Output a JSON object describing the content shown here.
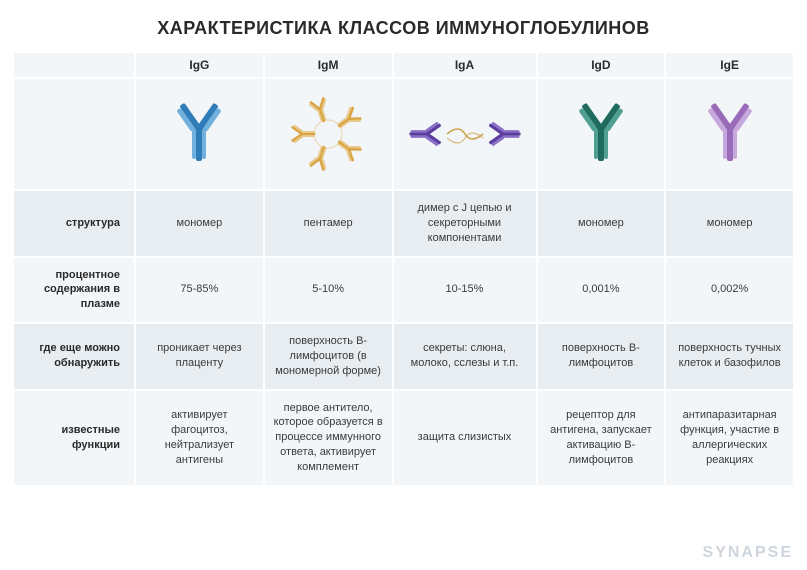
{
  "title": "ХАРАКТЕРИСТИКА КЛАССОВ ИММУНОГЛОБУЛИНОВ",
  "title_fontsize": 18,
  "title_color": "#2a2a2a",
  "watermark": "SYNAPSE",
  "colors": {
    "bg": "#ffffff",
    "row_a": "#e8edf2",
    "row_b": "#f3f6f9",
    "text": "#3a3a3a",
    "header_text": "#2a2a2a",
    "grid_gap": "#ffffff",
    "IgG": "#2e7cb8",
    "IgG_light": "#6fb0dd",
    "IgM": "#d9a441",
    "IgM_light": "#e8c88a",
    "IgA": "#5b3d9e",
    "IgA_light": "#8a6fc7",
    "IgD": "#1f6b5e",
    "IgD_light": "#4fa093",
    "IgE": "#9a6bb8",
    "IgE_light": "#c7a8dd"
  },
  "columns": [
    {
      "id": "IgG",
      "label": "IgG"
    },
    {
      "id": "IgM",
      "label": "IgM"
    },
    {
      "id": "IgA",
      "label": "IgA"
    },
    {
      "id": "IgD",
      "label": "IgD"
    },
    {
      "id": "IgE",
      "label": "IgE"
    }
  ],
  "row_labels": {
    "structure": "структура",
    "percent": "процентное содержания в плазме",
    "where": "где еще можно обнаружить",
    "functions": "известные функции"
  },
  "rows": {
    "structure": {
      "IgG": "мономер",
      "IgM": "пентамер",
      "IgA": "димер с J цепью и секреторными компонентами",
      "IgD": "мономер",
      "IgE": "мономер"
    },
    "percent": {
      "IgG": "75-85%",
      "IgM": "5-10%",
      "IgA": "10-15%",
      "IgD": "0,001%",
      "IgE": "0,002%"
    },
    "where": {
      "IgG": "проникает через плаценту",
      "IgM": "поверхность В-лимфоцитов (в мономерной форме)",
      "IgA": "секреты: слюна, молоко, сслезы и т.п.",
      "IgD": "поверхность В-лимфоцитов",
      "IgE": "поверхность тучных клеток и базофилов"
    },
    "functions": {
      "IgG": "активирует фагоцитоз, нейтрализует антигены",
      "IgM": "первое антитело, которое образуется в процессе иммунного ответа, активирует комплемент",
      "IgA": "защита слизистых",
      "IgD": "рецептор для антигена, запускает активацию В-лимфоцитов",
      "IgE": "антипаразитарная функция, участие в аллергических реакциях"
    }
  },
  "font_sizes": {
    "header": 12,
    "row_label": 11,
    "cell": 11
  },
  "icon_box": {
    "w": 120,
    "h": 100
  }
}
